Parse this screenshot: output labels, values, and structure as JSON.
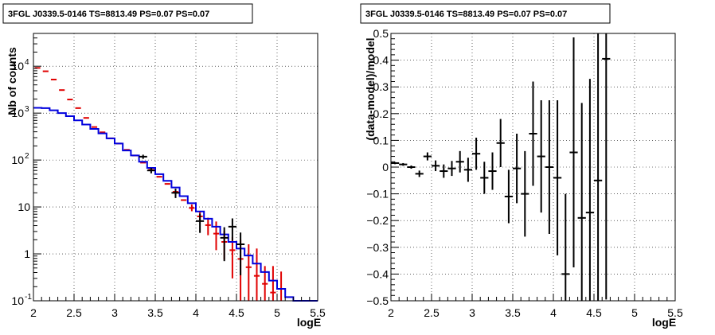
{
  "chart_data": [
    {
      "type": "step-histogram",
      "title": "3FGL J0339.5-0146 TS=8813.49 PS=0.07 PS=0.07",
      "xlabel": "logE",
      "ylabel": "Nb of counts",
      "xlim": [
        2,
        5.5
      ],
      "ylim": [
        0.1,
        50000
      ],
      "yscale": "log",
      "grid": true,
      "xticks": [
        "2",
        "2.5",
        "3",
        "3.5",
        "4",
        "4.5",
        "5",
        "5.5"
      ],
      "yticks": [
        {
          "value": 0.1,
          "label": "10",
          "exp": "-1"
        },
        {
          "value": 1,
          "label": "1",
          "exp": ""
        },
        {
          "value": 10,
          "label": "10",
          "exp": ""
        },
        {
          "value": 100,
          "label": "10",
          "exp": "2"
        },
        {
          "value": 1000,
          "label": "10",
          "exp": "3"
        },
        {
          "value": 10000,
          "label": "10",
          "exp": "4"
        }
      ],
      "bin_width": 0.1,
      "x": [
        2.05,
        2.15,
        2.25,
        2.35,
        2.45,
        2.55,
        2.65,
        2.75,
        2.85,
        2.95,
        3.05,
        3.15,
        3.25,
        3.35,
        3.45,
        3.55,
        3.65,
        3.75,
        3.85,
        3.95,
        4.05,
        4.15,
        4.25,
        4.35,
        4.45,
        4.55,
        4.65,
        4.75,
        4.85,
        4.95,
        5.05,
        5.15,
        5.25,
        5.35,
        5.45
      ],
      "series": [
        {
          "role": "model-red",
          "color": "#e00000",
          "values": [
            9200,
            7800,
            5200,
            3100,
            1950,
            1280,
            790,
            505,
            390,
            290,
            225,
            165,
            125,
            88,
            62,
            44,
            31,
            21,
            14,
            9.5,
            6.3,
            4.1,
            2.7,
            1.8,
            1.2,
            0.78,
            0.52,
            0.34,
            0.23,
            0.15,
            0.1,
            0.1,
            0.1,
            0.1,
            0.1
          ]
        },
        {
          "role": "model-blue",
          "color": "#0000dd",
          "values": [
            1300,
            1280,
            1150,
            1000,
            860,
            700,
            570,
            460,
            370,
            290,
            225,
            160,
            125,
            92,
            68,
            50,
            36,
            26,
            17,
            12,
            8.0,
            5.6,
            3.8,
            2.6,
            1.8,
            1.3,
            0.92,
            0.62,
            0.41,
            0.27,
            0.18,
            0.12,
            0.1,
            0.1,
            0.1
          ]
        },
        {
          "role": "data",
          "color": "#000000",
          "points": [
            {
              "x": 3.35,
              "y": 118,
              "lo": 12,
              "hi": 12
            },
            {
              "x": 3.45,
              "y": 60,
              "lo": 8,
              "hi": 8
            },
            {
              "x": 3.75,
              "y": 20,
              "lo": 4.5,
              "hi": 4.5
            },
            {
              "x": 4.05,
              "y": 5,
              "lo": 2.2,
              "hi": 2.2
            },
            {
              "x": 4.35,
              "y": 2.2,
              "lo": 1.5,
              "hi": 1.5
            },
            {
              "x": 4.45,
              "y": 3.8,
              "lo": 1.9,
              "hi": 1.9
            },
            {
              "x": 4.55,
              "y": 1.6,
              "lo": 1.25,
              "hi": 1.25
            }
          ]
        }
      ],
      "red_errbars": [
        {
          "x": 3.95,
          "ylow": 8.1,
          "yhigh": 11.3
        },
        {
          "x": 4.05,
          "ylow": 4.8,
          "yhigh": 8.1
        },
        {
          "x": 4.15,
          "ylow": 2.5,
          "yhigh": 5.9
        },
        {
          "x": 4.25,
          "ylow": 1.2,
          "yhigh": 4.9
        },
        {
          "x": 4.35,
          "ylow": 0.75,
          "yhigh": 3.1
        },
        {
          "x": 4.45,
          "ylow": 0.3,
          "yhigh": 2.3
        },
        {
          "x": 4.55,
          "ylow": 0.1,
          "yhigh": 2.0
        },
        {
          "x": 4.65,
          "ylow": 0.1,
          "yhigh": 1.6
        },
        {
          "x": 4.75,
          "ylow": 0.1,
          "yhigh": 1.3
        },
        {
          "x": 4.85,
          "ylow": 0.1,
          "yhigh": 0.55
        },
        {
          "x": 4.95,
          "ylow": 0.1,
          "yhigh": 0.55
        },
        {
          "x": 5.05,
          "ylow": 0.1,
          "yhigh": 0.42
        }
      ]
    },
    {
      "type": "scatter-errorbars",
      "title": "3FGL J0339.5-0146 TS=8813.49 PS=0.07 PS=0.07",
      "xlabel": "logE",
      "ylabel": "(data-model)/model",
      "xlim": [
        2,
        5.5
      ],
      "ylim": [
        -0.5,
        0.5
      ],
      "grid": true,
      "xticks": [
        "2",
        "2.5",
        "3",
        "3.5",
        "4",
        "4.5",
        "5",
        "5.5"
      ],
      "yticks": [
        "-0.5",
        "-0.4",
        "-0.3",
        "-0.2",
        "-0.1",
        "0",
        "0.1",
        "0.2",
        "0.3",
        "0.4",
        "0.5"
      ],
      "half_width": 0.05,
      "points": [
        {
          "x": 2.05,
          "y": 0.015,
          "err": 0.004
        },
        {
          "x": 2.15,
          "y": 0.01,
          "err": 0.005
        },
        {
          "x": 2.25,
          "y": 0.0,
          "err": 0.006
        },
        {
          "x": 2.35,
          "y": -0.025,
          "err": 0.012
        },
        {
          "x": 2.45,
          "y": 0.04,
          "err": 0.015
        },
        {
          "x": 2.55,
          "y": 0.005,
          "err": 0.02
        },
        {
          "x": 2.65,
          "y": -0.015,
          "err": 0.025
        },
        {
          "x": 2.75,
          "y": -0.005,
          "err": 0.028
        },
        {
          "x": 2.85,
          "y": 0.02,
          "err": 0.04
        },
        {
          "x": 2.95,
          "y": -0.01,
          "err": 0.045
        },
        {
          "x": 3.05,
          "y": 0.05,
          "err": 0.06
        },
        {
          "x": 3.15,
          "y": -0.04,
          "err": 0.06
        },
        {
          "x": 3.25,
          "y": -0.015,
          "err": 0.07
        },
        {
          "x": 3.35,
          "y": 0.09,
          "err": 0.09
        },
        {
          "x": 3.45,
          "y": -0.11,
          "err": 0.1
        },
        {
          "x": 3.55,
          "y": -0.005,
          "err": 0.13
        },
        {
          "x": 3.65,
          "y": -0.1,
          "err": 0.16
        },
        {
          "x": 3.75,
          "y": 0.125,
          "err": 0.195
        },
        {
          "x": 3.85,
          "y": 0.04,
          "err": 0.21
        },
        {
          "x": 3.95,
          "y": 0.0,
          "err": 0.25
        },
        {
          "x": 4.05,
          "y": -0.04,
          "err": 0.29
        },
        {
          "x": 4.15,
          "y": -0.4,
          "err": 0.3
        },
        {
          "x": 4.25,
          "y": 0.055,
          "err": 0.43
        },
        {
          "x": 4.35,
          "y": -0.19,
          "err": 0.43
        },
        {
          "x": 4.45,
          "y": -0.17,
          "err": 0.5
        },
        {
          "x": 4.55,
          "y": -0.05,
          "err": 0.6
        },
        {
          "x": 4.65,
          "y": 0.405,
          "err": 0.9
        }
      ]
    }
  ]
}
